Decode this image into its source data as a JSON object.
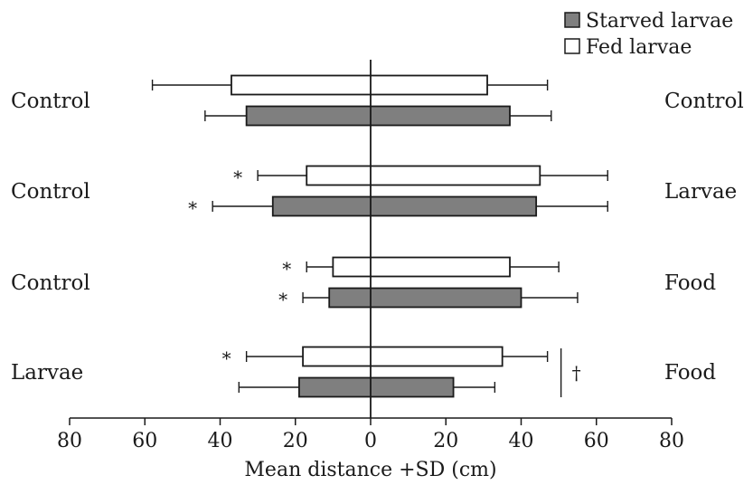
{
  "chart_data": {
    "type": "bar",
    "orientation": "horizontal",
    "xlabel": "Mean distance +SD (cm)",
    "xlim": [
      -80,
      80
    ],
    "x_ticks": [
      -80,
      -60,
      -40,
      -20,
      0,
      20,
      40,
      60,
      80
    ],
    "x_tick_labels": [
      "80",
      "60",
      "40",
      "20",
      "0",
      "20",
      "40",
      "60",
      "80"
    ],
    "legend_position": "top-right",
    "legend": [
      {
        "key": "starved",
        "label": "Starved larvae",
        "color": "#7f7f7f"
      },
      {
        "key": "fed",
        "label": "Fed larvae",
        "color": "#ffffff"
      }
    ],
    "groups": [
      {
        "left_label": "Control",
        "right_label": "Control",
        "bars": [
          {
            "series": "fed",
            "left": -37,
            "right": 31,
            "err_left": -58,
            "err_right": 47,
            "marker": ""
          },
          {
            "series": "starved",
            "left": -33,
            "right": 37,
            "err_left": -44,
            "err_right": 48,
            "marker": ""
          }
        ]
      },
      {
        "left_label": "Control",
        "right_label": "Larvae",
        "bars": [
          {
            "series": "fed",
            "left": -17,
            "right": 45,
            "err_left": -30,
            "err_right": 63,
            "marker": "*"
          },
          {
            "series": "starved",
            "left": -26,
            "right": 44,
            "err_left": -42,
            "err_right": 63,
            "marker": "*"
          }
        ]
      },
      {
        "left_label": "Control",
        "right_label": "Food",
        "bars": [
          {
            "series": "fed",
            "left": -10,
            "right": 37,
            "err_left": -17,
            "err_right": 50,
            "marker": "*"
          },
          {
            "series": "starved",
            "left": -11,
            "right": 40,
            "err_left": -18,
            "err_right": 55,
            "marker": "*"
          }
        ]
      },
      {
        "left_label": "Larvae",
        "right_label": "Food",
        "bars": [
          {
            "series": "fed",
            "left": -18,
            "right": 35,
            "err_left": -33,
            "err_right": 47,
            "marker": "*"
          },
          {
            "series": "starved",
            "left": -19,
            "right": 22,
            "err_left": -35,
            "err_right": 33,
            "marker": ""
          }
        ],
        "bracket_marker": "†"
      }
    ]
  }
}
